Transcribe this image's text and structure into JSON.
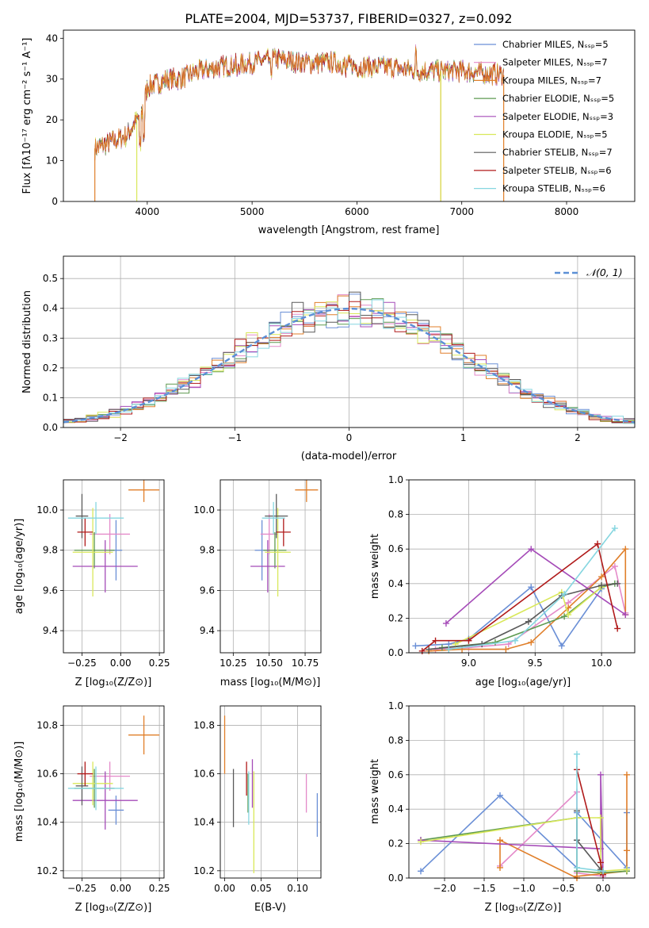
{
  "colors": [
    "#6a8fd6",
    "#e48ac9",
    "#e07f2a",
    "#5e9a50",
    "#a54bb8",
    "#d9e85a",
    "#5a5a5a",
    "#b01a1a",
    "#86d6e0"
  ],
  "chart_data": [
    {
      "id": "spectrum",
      "type": "line",
      "title": "PLATE=2004, MJD=53737, FIBERID=0327, z=0.092",
      "xlabel": "wavelength [Angstrom, rest frame]",
      "ylabel": "Flux [fλ10⁻¹⁷ erg cm⁻² s⁻¹ A⁻¹]",
      "xlim": [
        3200,
        8650
      ],
      "ylim": [
        0,
        42
      ],
      "xticks": [
        "4000",
        "5000",
        "6000",
        "7000",
        "8000"
      ],
      "yticks": [
        "0",
        "10",
        "20",
        "30",
        "40"
      ],
      "legend_position": "top-right",
      "legend": [
        "Chabrier MILES, N_SSP=5",
        "Salpeter MILES, N_SSP=7",
        "Kroupa MILES, N_SSP=7",
        "Chabrier ELODIE, N_SSP=5",
        "Salpeter ELODIE, N_SSP=3",
        "Kroupa ELODIE, N_SSP=5",
        "Chabrier STELIB, N_SSP=7",
        "Salpeter STELIB, N_SSP=6",
        "Kroupa STELIB, N_SSP=6"
      ],
      "continuum": {
        "x": [
          3500,
          3600,
          3700,
          3800,
          3900,
          3950,
          4000,
          4100,
          4200,
          4300,
          4400,
          4500,
          4700,
          5000,
          5200,
          5500,
          5800,
          6000,
          6300,
          6600,
          7000,
          7400
        ],
        "y": [
          13,
          14,
          15,
          16,
          20,
          22,
          28,
          29,
          30,
          30,
          31,
          32,
          33,
          34,
          35,
          34,
          34,
          33,
          33,
          32,
          32,
          31
        ]
      },
      "model_dropouts": [
        {
          "series": 2,
          "x": 3500,
          "y_min": 0
        },
        {
          "series": 5,
          "x": 3900,
          "y_min": 0
        },
        {
          "series": 2,
          "x": 6800,
          "y_min": 0
        },
        {
          "series": 5,
          "x": 6800,
          "y_min": 0
        },
        {
          "series": 2,
          "x": 7400,
          "y_min": 0
        }
      ]
    },
    {
      "id": "residual-hist",
      "type": "histogram",
      "xlabel": "(data-model)/error",
      "ylabel": "Normed distribution",
      "xlim": [
        -2.5,
        2.5
      ],
      "ylim": [
        0,
        0.575
      ],
      "xticks": [
        "−2",
        "−1",
        "0",
        "1",
        "2"
      ],
      "yticks": [
        "0.0",
        "0.1",
        "0.2",
        "0.3",
        "0.4",
        "0.5"
      ],
      "legend": [
        "𝒩(0, 1)"
      ],
      "legend_position": "top-right",
      "bin_width": 0.1,
      "bin_start": -2.5
    },
    {
      "id": "z-age",
      "type": "errorbar",
      "xlabel": "Z [log₁₀(Z/Z⊙)]",
      "ylabel": "age  [log₁₀(age/yr)]",
      "xlim": [
        -0.37,
        0.28
      ],
      "ylim": [
        9.29,
        10.15
      ],
      "xticks": [
        "−0.25",
        "0.00",
        "0.25"
      ],
      "yticks": [
        "9.4",
        "9.6",
        "9.8",
        "10.0"
      ],
      "points": [
        {
          "x": -0.03,
          "y": 9.8,
          "xerr": 0.04,
          "yerr": 0.15
        },
        {
          "x": -0.07,
          "y": 9.88,
          "xerr": 0.13,
          "yerr": 0.1
        },
        {
          "x": 0.15,
          "y": 10.1,
          "xerr": 0.1,
          "yerr": 0.06
        },
        {
          "x": -0.17,
          "y": 9.8,
          "xerr": 0.13,
          "yerr": 0.09
        },
        {
          "x": -0.1,
          "y": 9.72,
          "xerr": 0.21,
          "yerr": 0.13
        },
        {
          "x": -0.18,
          "y": 9.79,
          "xerr": 0.13,
          "yerr": 0.22
        },
        {
          "x": -0.25,
          "y": 9.97,
          "xerr": 0.04,
          "yerr": 0.11
        },
        {
          "x": -0.23,
          "y": 9.89,
          "xerr": 0.05,
          "yerr": 0.07
        },
        {
          "x": -0.16,
          "y": 9.96,
          "xerr": 0.18,
          "yerr": 0.08
        }
      ]
    },
    {
      "id": "mass-age",
      "type": "errorbar",
      "xlabel": "mass [log₁₀(M/M⊙)]",
      "ylabel": "",
      "xlim": [
        10.16,
        10.86
      ],
      "ylim": [
        9.29,
        10.15
      ],
      "xticks": [
        "10.25",
        "10.50",
        "10.75"
      ],
      "yticks": [
        "9.4",
        "9.6",
        "9.8",
        "10.0"
      ],
      "points": [
        {
          "x": 10.45,
          "y": 9.8,
          "xerr": 0.05,
          "yerr": 0.15
        },
        {
          "x": 10.5,
          "y": 9.88,
          "xerr": 0.06,
          "yerr": 0.1
        },
        {
          "x": 10.76,
          "y": 10.1,
          "xerr": 0.08,
          "yerr": 0.06
        },
        {
          "x": 10.54,
          "y": 9.8,
          "xerr": 0.08,
          "yerr": 0.09
        },
        {
          "x": 10.49,
          "y": 9.72,
          "xerr": 0.12,
          "yerr": 0.13
        },
        {
          "x": 10.56,
          "y": 9.79,
          "xerr": 0.09,
          "yerr": 0.22
        },
        {
          "x": 10.55,
          "y": 9.97,
          "xerr": 0.08,
          "yerr": 0.11
        },
        {
          "x": 10.6,
          "y": 9.89,
          "xerr": 0.05,
          "yerr": 0.07
        },
        {
          "x": 10.53,
          "y": 9.96,
          "xerr": 0.08,
          "yerr": 0.08
        }
      ]
    },
    {
      "id": "age-weight",
      "type": "line",
      "xlabel": "age  [log₁₀(age/yr)]",
      "ylabel": "mass weight",
      "xlim": [
        8.55,
        10.25
      ],
      "ylim": [
        0,
        1.0
      ],
      "xticks": [
        "9.0",
        "9.5",
        "10.0"
      ],
      "yticks": [
        "0.0",
        "0.2",
        "0.4",
        "0.6",
        "0.8",
        "1.0"
      ],
      "series": [
        {
          "x": [
            8.6,
            8.85,
            9.0,
            9.47,
            9.7,
            10.0
          ],
          "y": [
            0.04,
            0.05,
            0.08,
            0.38,
            0.04,
            0.37
          ]
        },
        {
          "x": [
            8.75,
            9.0,
            9.3,
            9.75,
            10.1,
            10.18
          ],
          "y": [
            0.02,
            0.03,
            0.05,
            0.29,
            0.5,
            0.23
          ]
        },
        {
          "x": [
            8.7,
            8.95,
            9.28,
            9.47,
            9.75,
            10.0,
            10.18,
            10.18
          ],
          "y": [
            0.01,
            0.02,
            0.02,
            0.06,
            0.26,
            0.44,
            0.6,
            0.22
          ]
        },
        {
          "x": [
            8.8,
            9.2,
            9.72,
            10.0,
            10.1
          ],
          "y": [
            0.03,
            0.06,
            0.21,
            0.38,
            0.4
          ]
        },
        {
          "x": [
            8.83,
            9.47,
            10.18
          ],
          "y": [
            0.17,
            0.6,
            0.22
          ]
        },
        {
          "x": [
            8.9,
            9.7,
            9.75,
            10.0
          ],
          "y": [
            0.05,
            0.35,
            0.22,
            0.38
          ]
        },
        {
          "x": [
            8.7,
            9.1,
            9.45,
            9.7,
            10.0,
            10.12
          ],
          "y": [
            0.02,
            0.05,
            0.18,
            0.33,
            0.39,
            0.4
          ]
        },
        {
          "x": [
            8.65,
            8.75,
            9.0,
            9.97,
            10.12
          ],
          "y": [
            0.01,
            0.07,
            0.07,
            0.63,
            0.14
          ]
        },
        {
          "x": [
            8.85,
            9.35,
            9.72,
            10.1
          ],
          "y": [
            0.02,
            0.07,
            0.34,
            0.72
          ]
        }
      ]
    },
    {
      "id": "z-mass",
      "type": "errorbar",
      "xlabel": "Z [log₁₀(Z/Z⊙)]",
      "ylabel": "mass [log₁₀(M/M⊙)]",
      "xlim": [
        -0.37,
        0.28
      ],
      "ylim": [
        10.17,
        10.88
      ],
      "xticks": [
        "−0.25",
        "0.00",
        "0.25"
      ],
      "yticks": [
        "10.2",
        "10.4",
        "10.6",
        "10.8"
      ],
      "points": [
        {
          "x": -0.03,
          "y": 10.45,
          "xerr": 0.05,
          "yerr": 0.06
        },
        {
          "x": -0.07,
          "y": 10.59,
          "xerr": 0.13,
          "yerr": 0.06
        },
        {
          "x": 0.15,
          "y": 10.76,
          "xerr": 0.1,
          "yerr": 0.08
        },
        {
          "x": -0.17,
          "y": 10.54,
          "xerr": 0.13,
          "yerr": 0.08
        },
        {
          "x": -0.1,
          "y": 10.49,
          "xerr": 0.21,
          "yerr": 0.12
        },
        {
          "x": -0.18,
          "y": 10.56,
          "xerr": 0.13,
          "yerr": 0.09
        },
        {
          "x": -0.25,
          "y": 10.55,
          "xerr": 0.04,
          "yerr": 0.08
        },
        {
          "x": -0.23,
          "y": 10.6,
          "xerr": 0.05,
          "yerr": 0.05
        },
        {
          "x": -0.16,
          "y": 10.54,
          "xerr": 0.18,
          "yerr": 0.09
        }
      ]
    },
    {
      "id": "ebv-mass",
      "type": "errorbar",
      "xlabel": "E(B-V)",
      "ylabel": "",
      "xlim": [
        -0.006,
        0.132
      ],
      "ylim": [
        10.17,
        10.88
      ],
      "xticks": [
        "0.00",
        "0.05",
        "0.10"
      ],
      "yticks": [
        "10.2",
        "10.4",
        "10.6",
        "10.8"
      ],
      "points": [
        {
          "x": 0.127,
          "y": 10.43,
          "xerr": 0,
          "yerr": 0.09
        },
        {
          "x": 0.112,
          "y": 10.52,
          "xerr": 0,
          "yerr": 0.08
        },
        {
          "x": 0.0,
          "y": 10.72,
          "xerr": 0,
          "yerr": 0.12
        },
        {
          "x": 0.032,
          "y": 10.52,
          "xerr": 0,
          "yerr": 0.08
        },
        {
          "x": 0.038,
          "y": 10.56,
          "xerr": 0,
          "yerr": 0.1
        },
        {
          "x": 0.04,
          "y": 10.4,
          "xerr": 0,
          "yerr": 0.21
        },
        {
          "x": 0.012,
          "y": 10.5,
          "xerr": 0,
          "yerr": 0.12
        },
        {
          "x": 0.03,
          "y": 10.58,
          "xerr": 0,
          "yerr": 0.07
        },
        {
          "x": 0.033,
          "y": 10.5,
          "xerr": 0,
          "yerr": 0.11
        }
      ]
    },
    {
      "id": "z-weight",
      "type": "line",
      "xlabel": "Z [log₁₀(Z/Z⊙)]",
      "ylabel": "mass weight",
      "xlim": [
        -2.45,
        0.4
      ],
      "ylim": [
        0,
        1.0
      ],
      "xticks": [
        "−2.0",
        "−1.5",
        "−1.0",
        "−0.5",
        "0.0"
      ],
      "yticks": [
        "0.0",
        "0.2",
        "0.4",
        "0.6",
        "0.8",
        "1.0"
      ],
      "series": [
        {
          "x": [
            -2.3,
            -1.3,
            -0.33,
            -0.33,
            0.3,
            0.3
          ],
          "y": [
            0.04,
            0.48,
            0.06,
            0.38,
            0.06,
            0.38
          ]
        },
        {
          "x": [
            -1.3,
            -0.33,
            -0.33,
            0.0
          ],
          "y": [
            0.07,
            0.5,
            0.03,
            0.01
          ]
        },
        {
          "x": [
            -1.3,
            -1.3,
            -0.33,
            -0.33,
            0.3,
            0.3,
            0.3
          ],
          "y": [
            0.06,
            0.22,
            0.0,
            0.01,
            0.04,
            0.6,
            0.16
          ]
        },
        {
          "x": [
            -2.3,
            -0.33,
            -0.33,
            -0.03,
            0.3
          ],
          "y": [
            0.22,
            0.35,
            0.04,
            0.03,
            0.04
          ]
        },
        {
          "x": [
            -2.3,
            -0.03,
            -0.03,
            0.0
          ],
          "y": [
            0.22,
            0.17,
            0.6,
            0.02
          ]
        },
        {
          "x": [
            -2.3,
            -0.33,
            -0.03,
            -0.03,
            0.3
          ],
          "y": [
            0.21,
            0.35,
            0.35,
            0.04,
            0.05
          ]
        },
        {
          "x": [
            -0.33,
            -0.33,
            -0.03
          ],
          "y": [
            0.39,
            0.22,
            0.05
          ]
        },
        {
          "x": [
            -0.33,
            -0.03,
            0.0
          ],
          "y": [
            0.63,
            0.09,
            0.02
          ]
        },
        {
          "x": [
            -0.33,
            -0.33,
            0.0,
            0.0
          ],
          "y": [
            0.72,
            0.06,
            0.04,
            0.04
          ]
        }
      ]
    }
  ]
}
